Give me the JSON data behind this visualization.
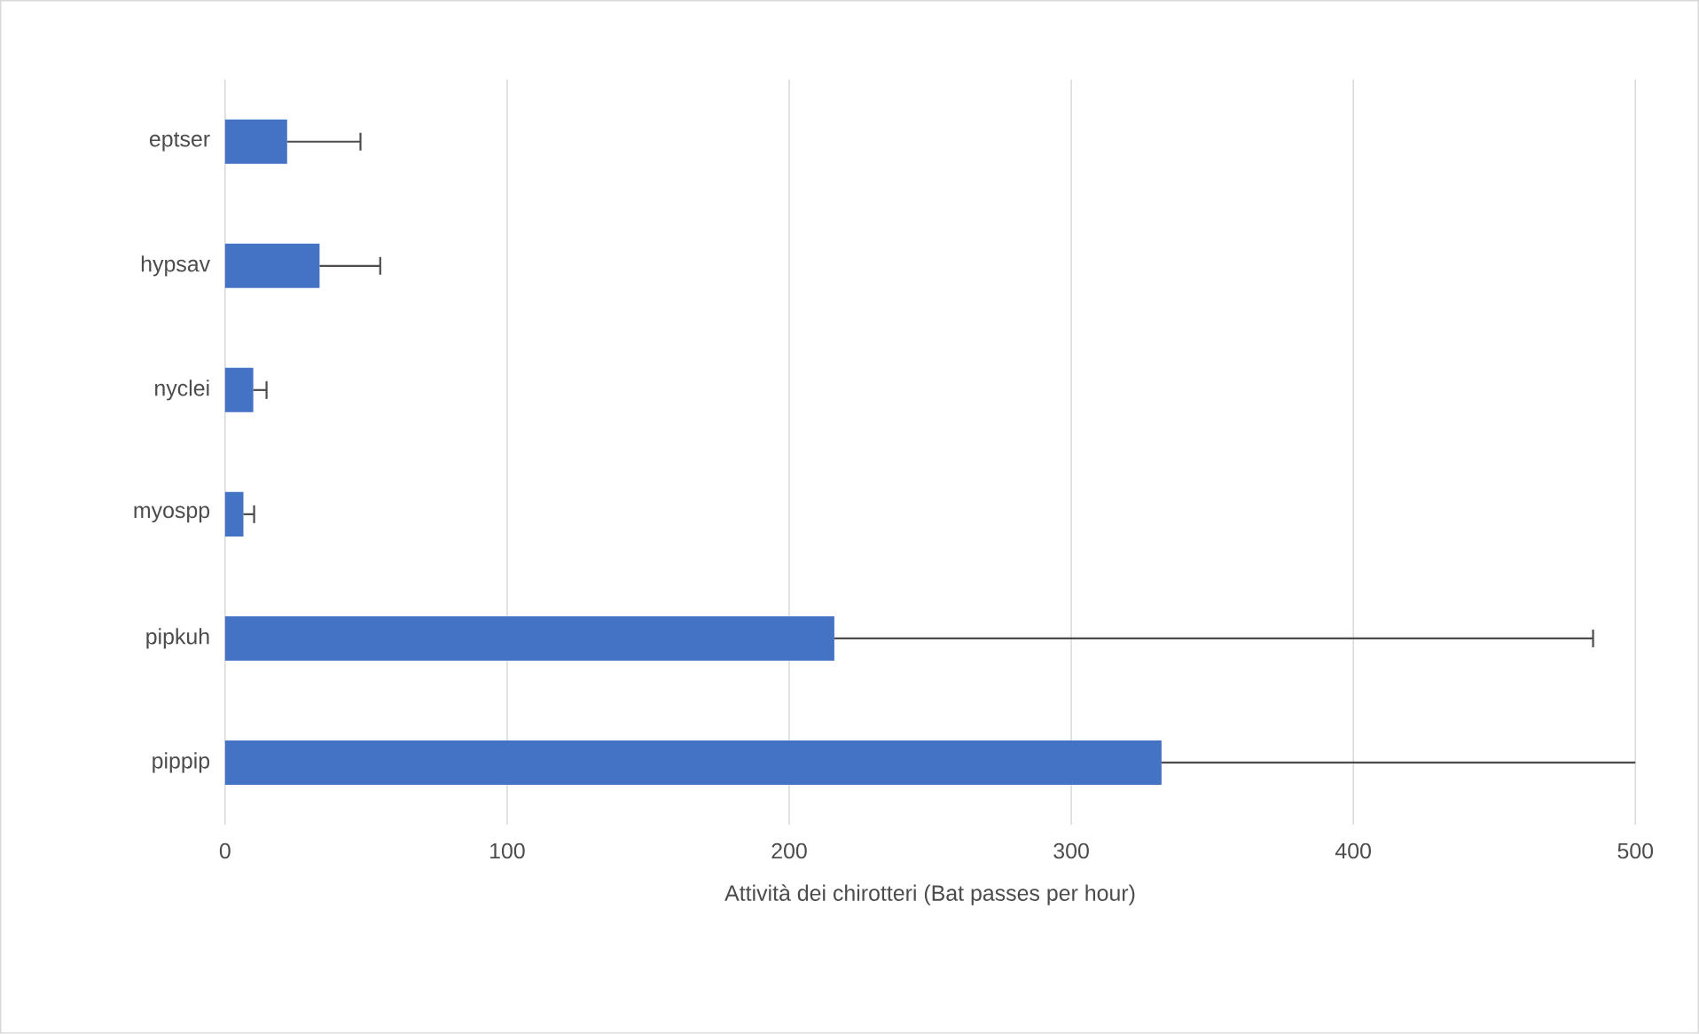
{
  "chart_data": {
    "type": "bar",
    "orientation": "horizontal",
    "categories": [
      "eptser",
      "hypsav",
      "nyclei",
      "myospp",
      "pipkuh",
      "pippip"
    ],
    "values": [
      22,
      33.5,
      10,
      6.5,
      216,
      332
    ],
    "errors": [
      [
        22,
        48
      ],
      [
        33.5,
        55
      ],
      [
        10,
        14.7
      ],
      [
        6.5,
        10.3
      ],
      [
        216,
        485
      ],
      [
        332,
        500
      ]
    ],
    "color": "#4472c4",
    "xlabel": "Attività dei chirotteri (Bat passes per hour)",
    "xlim": [
      0,
      500
    ],
    "xticks": [
      0,
      100,
      200,
      300,
      400,
      500
    ],
    "grid": "x"
  }
}
